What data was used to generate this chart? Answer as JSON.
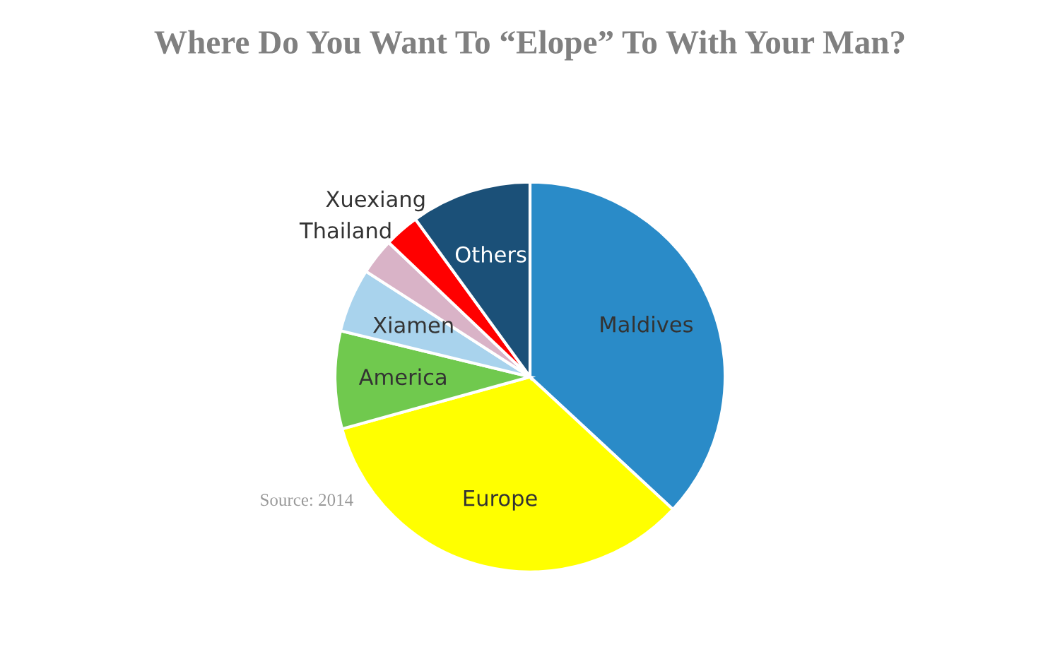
{
  "chart_data": {
    "type": "pie",
    "title": "Where Do You Want To “Elope” To With Your Man?",
    "categories": [
      "Maldives",
      "Europe",
      "America",
      "Xiamen",
      "Thailand",
      "Xuexiang",
      "Others"
    ],
    "values": [
      36.9,
      33.8,
      8.1,
      5.3,
      3.0,
      2.9,
      10.0
    ],
    "colors": [
      "#2a8bc8",
      "#ffff00",
      "#70c94e",
      "#a9d3ed",
      "#d9b3c7",
      "#ff0000",
      "#1b5078"
    ],
    "annotations": [
      "Source: 2014"
    ],
    "legend": false
  }
}
